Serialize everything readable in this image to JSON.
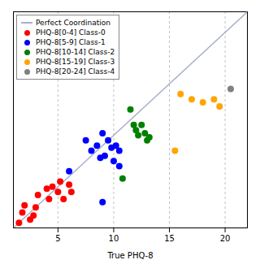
{
  "chart_data": {
    "type": "scatter",
    "xlabel": "True PHQ-8",
    "xlim": [
      1,
      22
    ],
    "ylim": [
      1,
      22
    ],
    "xticks": [
      5,
      10,
      15,
      20
    ],
    "yticks": [],
    "tick_labels": "x",
    "grid": true,
    "legend": "upper left",
    "series": [
      {
        "name": "Perfect Coordination",
        "type": "line",
        "color": "#aab0cc",
        "values": [
          [
            1,
            1
          ],
          [
            22,
            22
          ]
        ]
      },
      {
        "name": "PHQ-8[0-4] Class-0",
        "type": "scatter",
        "color": "red",
        "values": [
          [
            1.5,
            1.5
          ],
          [
            1.8,
            2.5
          ],
          [
            2.0,
            3.2
          ],
          [
            2.5,
            1.8
          ],
          [
            2.8,
            2.2
          ],
          [
            3.0,
            3.0
          ],
          [
            3.2,
            4.2
          ],
          [
            4.0,
            4.8
          ],
          [
            4.2,
            3.8
          ],
          [
            4.5,
            5.0
          ],
          [
            5.0,
            4.5
          ],
          [
            5.2,
            5.5
          ],
          [
            5.5,
            3.8
          ],
          [
            6.0,
            5.2
          ],
          [
            6.2,
            4.5
          ]
        ]
      },
      {
        "name": "PHQ-8[5-9] Class-1",
        "type": "scatter",
        "color": "blue",
        "values": [
          [
            6.0,
            6.5
          ],
          [
            7.5,
            9.5
          ],
          [
            8.0,
            8.5
          ],
          [
            8.5,
            9.0
          ],
          [
            8.8,
            7.8
          ],
          [
            9.0,
            10.2
          ],
          [
            9.2,
            8.0
          ],
          [
            9.5,
            9.5
          ],
          [
            9.8,
            8.8
          ],
          [
            10.0,
            7.5
          ],
          [
            10.2,
            9.0
          ],
          [
            10.5,
            8.5
          ],
          [
            10.5,
            7.0
          ],
          [
            9.0,
            3.5
          ]
        ]
      },
      {
        "name": "PHQ-8[10-14] Class-2",
        "type": "scatter",
        "color": "green",
        "values": [
          [
            10.8,
            5.8
          ],
          [
            11.5,
            12.5
          ],
          [
            11.8,
            11.0
          ],
          [
            12.0,
            10.5
          ],
          [
            12.2,
            10.0
          ],
          [
            12.5,
            11.0
          ],
          [
            12.8,
            10.2
          ],
          [
            13.0,
            9.5
          ],
          [
            13.2,
            9.8
          ]
        ]
      },
      {
        "name": "PHQ-8[15-19] Class-3",
        "type": "scatter",
        "color": "orange",
        "values": [
          [
            15.5,
            8.5
          ],
          [
            16.0,
            14.0
          ],
          [
            17.0,
            13.5
          ],
          [
            18.0,
            13.2
          ],
          [
            19.0,
            13.5
          ],
          [
            19.5,
            12.8
          ]
        ]
      },
      {
        "name": "PHQ-8[20-24] Class-4",
        "type": "scatter",
        "color": "gray",
        "values": [
          [
            20.5,
            14.5
          ]
        ]
      }
    ]
  }
}
